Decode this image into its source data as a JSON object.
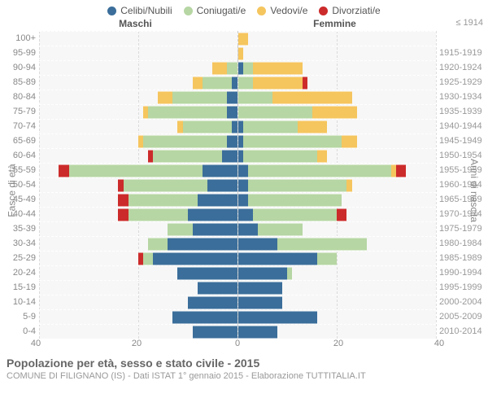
{
  "legend": [
    {
      "label": "Celibi/Nubili",
      "color": "#3b6e9a"
    },
    {
      "label": "Coniugati/e",
      "color": "#b6d6a3"
    },
    {
      "label": "Vedovi/e",
      "color": "#f5c55e"
    },
    {
      "label": "Divorziati/e",
      "color": "#cc2b2b"
    }
  ],
  "headers": {
    "male": "Maschi",
    "female": "Femmine",
    "birth_header": "≤ 1914"
  },
  "axis_labels": {
    "left": "Fasce di età",
    "right": "Anni di nascita"
  },
  "xlim": 40,
  "xticks": [
    40,
    20,
    0,
    20,
    40
  ],
  "title": "Popolazione per età, sesso e stato civile - 2015",
  "subtitle": "COMUNE DI FILIGNANO (IS) - Dati ISTAT 1° gennaio 2015 - Elaborazione TUTTITALIA.IT",
  "plot_bg": "#f7f7f7",
  "rows": [
    {
      "age": "100+",
      "birth": "≤ 1914",
      "m": [
        0,
        0,
        0,
        0
      ],
      "f": [
        0,
        0,
        2,
        0
      ]
    },
    {
      "age": "95-99",
      "birth": "1915-1919",
      "m": [
        0,
        0,
        0,
        0
      ],
      "f": [
        0,
        0,
        1,
        0
      ]
    },
    {
      "age": "90-94",
      "birth": "1920-1924",
      "m": [
        0,
        2,
        3,
        0
      ],
      "f": [
        1,
        2,
        10,
        0
      ]
    },
    {
      "age": "85-89",
      "birth": "1925-1929",
      "m": [
        1,
        6,
        2,
        0
      ],
      "f": [
        0,
        3,
        10,
        1
      ]
    },
    {
      "age": "80-84",
      "birth": "1930-1934",
      "m": [
        2,
        11,
        3,
        0
      ],
      "f": [
        0,
        7,
        16,
        0
      ]
    },
    {
      "age": "75-79",
      "birth": "1935-1939",
      "m": [
        2,
        16,
        1,
        0
      ],
      "f": [
        0,
        15,
        9,
        0
      ]
    },
    {
      "age": "70-74",
      "birth": "1940-1944",
      "m": [
        1,
        10,
        1,
        0
      ],
      "f": [
        1,
        11,
        6,
        0
      ]
    },
    {
      "age": "65-69",
      "birth": "1945-1949",
      "m": [
        2,
        17,
        1,
        0
      ],
      "f": [
        1,
        20,
        3,
        0
      ]
    },
    {
      "age": "60-64",
      "birth": "1950-1954",
      "m": [
        3,
        14,
        0,
        1
      ],
      "f": [
        1,
        15,
        2,
        0
      ]
    },
    {
      "age": "55-59",
      "birth": "1955-1959",
      "m": [
        7,
        27,
        0,
        2
      ],
      "f": [
        2,
        29,
        1,
        2
      ]
    },
    {
      "age": "50-54",
      "birth": "1960-1964",
      "m": [
        6,
        17,
        0,
        1
      ],
      "f": [
        2,
        20,
        1,
        0
      ]
    },
    {
      "age": "45-49",
      "birth": "1965-1969",
      "m": [
        8,
        14,
        0,
        2
      ],
      "f": [
        2,
        19,
        0,
        0
      ]
    },
    {
      "age": "40-44",
      "birth": "1970-1974",
      "m": [
        10,
        12,
        0,
        2
      ],
      "f": [
        3,
        17,
        0,
        2
      ]
    },
    {
      "age": "35-39",
      "birth": "1975-1979",
      "m": [
        9,
        5,
        0,
        0
      ],
      "f": [
        4,
        9,
        0,
        0
      ]
    },
    {
      "age": "30-34",
      "birth": "1980-1984",
      "m": [
        14,
        4,
        0,
        0
      ],
      "f": [
        8,
        18,
        0,
        0
      ]
    },
    {
      "age": "25-29",
      "birth": "1985-1989",
      "m": [
        17,
        2,
        0,
        1
      ],
      "f": [
        16,
        4,
        0,
        0
      ]
    },
    {
      "age": "20-24",
      "birth": "1990-1994",
      "m": [
        12,
        0,
        0,
        0
      ],
      "f": [
        10,
        1,
        0,
        0
      ]
    },
    {
      "age": "15-19",
      "birth": "1995-1999",
      "m": [
        8,
        0,
        0,
        0
      ],
      "f": [
        9,
        0,
        0,
        0
      ]
    },
    {
      "age": "10-14",
      "birth": "2000-2004",
      "m": [
        10,
        0,
        0,
        0
      ],
      "f": [
        9,
        0,
        0,
        0
      ]
    },
    {
      "age": "5-9",
      "birth": "2005-2009",
      "m": [
        13,
        0,
        0,
        0
      ],
      "f": [
        16,
        0,
        0,
        0
      ]
    },
    {
      "age": "0-4",
      "birth": "2010-2014",
      "m": [
        9,
        0,
        0,
        0
      ],
      "f": [
        8,
        0,
        0,
        0
      ]
    }
  ]
}
